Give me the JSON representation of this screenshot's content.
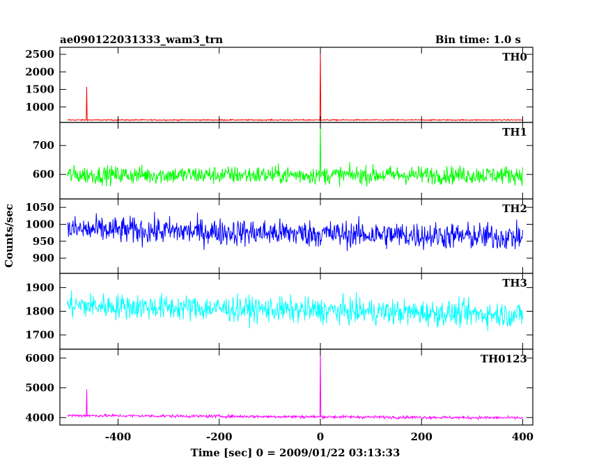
{
  "chart_data": {
    "type": "line",
    "title": "ae090122031333_wam3_trn",
    "bin_label": "Bin time: 1.0 s",
    "xlabel": "Time [sec] 0 = 2009/01/22 03:13:33",
    "ylabel": "Counts/sec",
    "xlim": [
      -515,
      420
    ],
    "x_ticks": [
      -400,
      -200,
      0,
      200,
      400
    ],
    "x_range": [
      -500,
      400
    ],
    "grid": false,
    "panels": [
      {
        "name": "TH0",
        "color": "#ff0000",
        "ylim": [
          560,
          2700
        ],
        "y_ticks": [
          1000,
          1500,
          2000,
          2500
        ],
        "baseline": 630,
        "noise": 12,
        "spikes": [
          {
            "x": -462,
            "y": 1570
          },
          {
            "x": 0,
            "y": 2700
          }
        ]
      },
      {
        "name": "TH1",
        "color": "#00ff00",
        "ylim": [
          515,
          780
        ],
        "y_ticks": [
          600,
          700
        ],
        "baseline": 598,
        "noise": 22,
        "spikes": [
          {
            "x": 0,
            "y": 775
          }
        ]
      },
      {
        "name": "TH2",
        "color": "#0000ff",
        "ylim": [
          855,
          1075
        ],
        "y_ticks": [
          900,
          950,
          1000,
          1050
        ],
        "baseline": 985,
        "baseline_end": 962,
        "noise": 28,
        "spikes": []
      },
      {
        "name": "TH3",
        "color": "#00ffff",
        "ylim": [
          1640,
          1960
        ],
        "y_ticks": [
          1700,
          1800,
          1900
        ],
        "baseline": 1825,
        "baseline_end": 1785,
        "noise": 38,
        "spikes": []
      },
      {
        "name": "TH0123",
        "color": "#ff00ff",
        "ylim": [
          3750,
          6300
        ],
        "y_ticks": [
          4000,
          5000,
          6000
        ],
        "baseline": 4070,
        "baseline_end": 3990,
        "noise": 35,
        "spikes": [
          {
            "x": -462,
            "y": 4950
          },
          {
            "x": 0,
            "y": 6300
          }
        ]
      }
    ]
  }
}
